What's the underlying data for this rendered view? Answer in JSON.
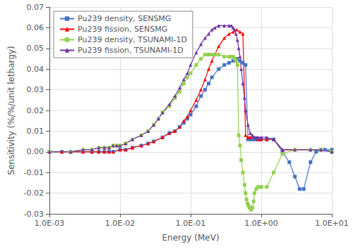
{
  "chart_data": {
    "type": "line",
    "xlabel": "Energy (MeV)",
    "ylabel": "Sensitivity (%/%/unit lethargy)",
    "log": "x",
    "grid": true,
    "legend": "upper left",
    "xlim": [
      0.001,
      10
    ],
    "xticks": [
      {
        "value": 0.001,
        "label": "1.0E-03"
      },
      {
        "value": 0.01,
        "label": "1.0E-02"
      },
      {
        "value": 0.1,
        "label": "1.0E-01"
      },
      {
        "value": 1,
        "label": "1.0E+00"
      },
      {
        "value": 10,
        "label": "1.0E+01"
      }
    ],
    "ylim": [
      -0.03,
      0.07
    ],
    "yticks": [
      -0.03,
      -0.02,
      -0.01,
      {
        "value": 0,
        "label": "0.00"
      },
      0.01,
      0.02,
      0.03,
      0.04,
      0.05,
      0.06,
      0.07
    ],
    "series": [
      {
        "name": "Pu239 density, SENSMG",
        "color": "#4472c4",
        "marker": "square",
        "x": [
          0.001,
          0.0015,
          0.002,
          0.003,
          0.004,
          0.005,
          0.006,
          0.007,
          0.008,
          0.01,
          0.012,
          0.015,
          0.02,
          0.025,
          0.03,
          0.04,
          0.05,
          0.06,
          0.07,
          0.08,
          0.09,
          0.1,
          0.12,
          0.14,
          0.16,
          0.18,
          0.2,
          0.25,
          0.3,
          0.35,
          0.4,
          0.45,
          0.5,
          0.55,
          0.6,
          0.65,
          0.7,
          0.75,
          0.8,
          0.85,
          0.9,
          0.95,
          1.0,
          1.2,
          1.5,
          2.0,
          2.5,
          3.0,
          3.5,
          4.0,
          5.0,
          6.0,
          7.0,
          8.0,
          10.0
        ],
        "values": [
          0.0,
          0.0,
          0.0,
          0.0,
          0.0,
          0.0,
          0.0,
          0.0,
          0.0,
          0.001,
          0.001,
          0.002,
          0.003,
          0.004,
          0.005,
          0.007,
          0.009,
          0.01,
          0.012,
          0.014,
          0.016,
          0.018,
          0.022,
          0.027,
          0.03,
          0.033,
          0.036,
          0.04,
          0.042,
          0.043,
          0.044,
          0.045,
          0.044,
          0.043,
          0.042,
          0.006,
          0.006,
          0.006,
          0.006,
          0.006,
          0.006,
          0.006,
          0.006,
          0.006,
          0.006,
          0.0,
          -0.005,
          -0.012,
          -0.018,
          -0.018,
          -0.005,
          0.0,
          0.001,
          0.001,
          0.001
        ]
      },
      {
        "name": "Pu239 fission, SENSMG",
        "color": "#ff0000",
        "marker": "triangle",
        "x": [
          0.001,
          0.0015,
          0.002,
          0.003,
          0.004,
          0.005,
          0.006,
          0.007,
          0.008,
          0.01,
          0.012,
          0.015,
          0.02,
          0.025,
          0.03,
          0.04,
          0.05,
          0.06,
          0.07,
          0.08,
          0.09,
          0.1,
          0.12,
          0.14,
          0.16,
          0.18,
          0.2,
          0.25,
          0.3,
          0.35,
          0.4,
          0.45,
          0.5,
          0.55,
          0.6,
          0.65,
          0.7,
          0.8,
          0.9,
          1.0,
          1.2,
          1.5,
          2.0,
          3.0,
          5.0,
          7.0,
          10.0
        ],
        "values": [
          0.0,
          0.0,
          0.0,
          0.0,
          0.0,
          0.0,
          0.0,
          0.0,
          0.0,
          0.001,
          0.001,
          0.002,
          0.003,
          0.004,
          0.005,
          0.007,
          0.009,
          0.01,
          0.012,
          0.015,
          0.017,
          0.02,
          0.025,
          0.03,
          0.035,
          0.04,
          0.044,
          0.051,
          0.055,
          0.057,
          0.058,
          0.059,
          0.058,
          0.057,
          0.008,
          0.007,
          0.007,
          0.007,
          0.006,
          0.006,
          0.006,
          0.006,
          0.001,
          0.001,
          0.001,
          0.001,
          0.0
        ]
      },
      {
        "name": "Pu239 density, TSUNAMI-1D",
        "color": "#92d050",
        "marker": "square",
        "x": [
          0.001,
          0.002,
          0.003,
          0.004,
          0.005,
          0.006,
          0.007,
          0.008,
          0.009,
          0.01,
          0.012,
          0.015,
          0.02,
          0.025,
          0.03,
          0.035,
          0.04,
          0.05,
          0.06,
          0.07,
          0.08,
          0.09,
          0.1,
          0.12,
          0.14,
          0.16,
          0.18,
          0.2,
          0.22,
          0.25,
          0.3,
          0.35,
          0.38,
          0.4,
          0.42,
          0.44,
          0.46,
          0.48,
          0.5,
          0.52,
          0.55,
          0.58,
          0.6,
          0.62,
          0.64,
          0.66,
          0.68,
          0.7,
          0.72,
          0.75,
          0.78,
          0.8,
          0.85,
          0.9,
          0.95,
          1.0,
          1.2,
          1.5,
          2.0,
          3.0,
          5.0,
          7.0,
          10.0
        ],
        "values": [
          0.0,
          0.0,
          0.001,
          0.001,
          0.002,
          0.002,
          0.002,
          0.003,
          0.003,
          0.003,
          0.004,
          0.006,
          0.008,
          0.01,
          0.013,
          0.016,
          0.019,
          0.022,
          0.026,
          0.029,
          0.033,
          0.036,
          0.038,
          0.042,
          0.045,
          0.047,
          0.047,
          0.047,
          0.047,
          0.047,
          0.046,
          0.046,
          0.046,
          0.046,
          0.045,
          0.044,
          0.042,
          0.008,
          0.003,
          -0.004,
          -0.01,
          -0.016,
          -0.02,
          -0.023,
          -0.025,
          -0.026,
          -0.027,
          -0.027,
          -0.028,
          -0.027,
          -0.024,
          -0.02,
          -0.018,
          -0.017,
          -0.017,
          -0.017,
          -0.017,
          -0.01,
          -0.001,
          0.001,
          0.001,
          0.001,
          0.0
        ]
      },
      {
        "name": "Pu239 fission, TSUNAMI-1D",
        "color": "#7030a0",
        "marker": "triangle",
        "x": [
          0.001,
          0.002,
          0.003,
          0.004,
          0.005,
          0.006,
          0.007,
          0.008,
          0.009,
          0.01,
          0.012,
          0.015,
          0.02,
          0.025,
          0.03,
          0.035,
          0.04,
          0.05,
          0.06,
          0.07,
          0.08,
          0.09,
          0.1,
          0.12,
          0.14,
          0.16,
          0.18,
          0.2,
          0.22,
          0.25,
          0.3,
          0.35,
          0.38,
          0.4,
          0.42,
          0.44,
          0.46,
          0.48,
          0.5,
          0.52,
          0.55,
          0.58,
          0.6,
          0.65,
          0.7,
          0.75,
          0.8,
          0.85,
          0.9,
          1.0,
          1.2,
          1.5,
          2.0,
          3.0,
          5.0,
          7.0,
          10.0
        ],
        "values": [
          0.0,
          0.0,
          0.001,
          0.001,
          0.002,
          0.002,
          0.002,
          0.003,
          0.003,
          0.003,
          0.004,
          0.006,
          0.008,
          0.01,
          0.013,
          0.016,
          0.019,
          0.023,
          0.027,
          0.031,
          0.035,
          0.038,
          0.042,
          0.048,
          0.052,
          0.055,
          0.057,
          0.059,
          0.06,
          0.061,
          0.061,
          0.061,
          0.061,
          0.06,
          0.059,
          0.057,
          0.054,
          0.05,
          0.046,
          0.04,
          0.033,
          0.026,
          0.02,
          0.013,
          0.009,
          0.008,
          0.007,
          0.007,
          0.007,
          0.007,
          0.007,
          0.006,
          0.001,
          0.001,
          0.001,
          0.001,
          0.0
        ]
      }
    ]
  }
}
